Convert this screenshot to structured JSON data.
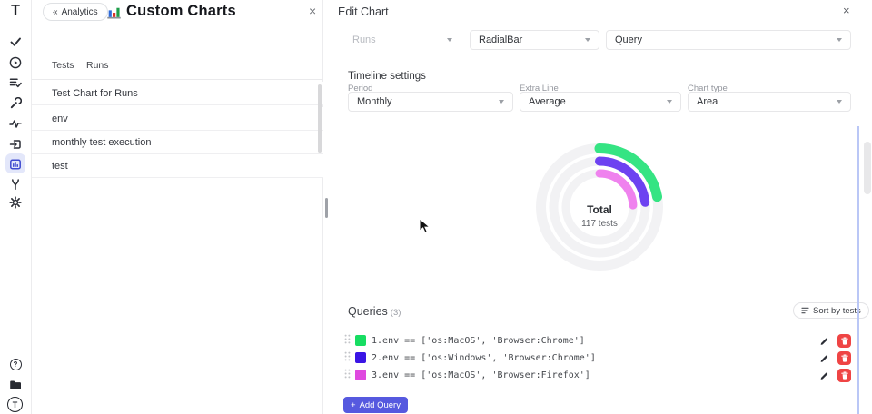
{
  "colors": {
    "accent_indigo": "#5659df",
    "delete_red": "#ef4444",
    "active_nav_bg": "#e3e7fa",
    "scroll_line_blue": "#bac7f6"
  },
  "sidebar": {
    "logo": "T",
    "icons": [
      "check",
      "play-circle",
      "checklist",
      "wrench",
      "activity",
      "import",
      "analytics-chart",
      "branch",
      "settings-gear"
    ],
    "active_icon": "analytics-chart",
    "help": "?",
    "avatar": "T"
  },
  "left_panel": {
    "back": {
      "chevrons": "«",
      "label": "Analytics"
    },
    "title": "Custom Charts",
    "close_label": "×",
    "tabs": [
      {
        "label": "Tests"
      },
      {
        "label": "Runs"
      }
    ],
    "charts": [
      {
        "name": "Test Chart for Runs"
      },
      {
        "name": "env"
      },
      {
        "name": "monthly test execution"
      },
      {
        "name": "test"
      }
    ]
  },
  "edit_panel": {
    "title": "Edit Chart",
    "close_label": "×",
    "source_select": {
      "value": "Runs",
      "disabled": true
    },
    "type_select": {
      "value": "RadialBar"
    },
    "mode_select": {
      "value": "Query"
    },
    "timeline": {
      "heading": "Timeline settings",
      "fields": [
        {
          "label": "Period",
          "value": "Monthly"
        },
        {
          "label": "Extra Line",
          "value": "Average"
        },
        {
          "label": "Chart type",
          "value": "Area"
        }
      ]
    },
    "queries": {
      "heading": "Queries",
      "count": "(3)",
      "sort_label": "Sort by tests",
      "add_plus": "+",
      "add_label": "Add Query",
      "items": [
        {
          "index": "1.",
          "code": "env == ['os:MacOS', 'Browser:Chrome']",
          "swatch": "#17dd62"
        },
        {
          "index": "2.",
          "code": "env == ['os:Windows', 'Browser:Chrome']",
          "swatch": "#3a15e5"
        },
        {
          "index": "3.",
          "code": "env == ['os:MacOS', 'Browser:Firefox']",
          "swatch": "#df49df"
        }
      ]
    }
  },
  "chart_data": {
    "type": "radialbar",
    "title": "Total",
    "subtitle": "117 tests",
    "total_tests": 117,
    "start_angle_deg": 0,
    "track_color": "#f2f2f4",
    "series": [
      {
        "name": "env == ['os:MacOS', 'Browser:Chrome']",
        "color": "#35e483",
        "sweep_deg": 80
      },
      {
        "name": "env == ['os:Windows', 'Browser:Chrome']",
        "color": "#6d42f1",
        "sweep_deg": 84
      },
      {
        "name": "env == ['os:MacOS', 'Browser:Firefox']",
        "color": "#ef82ee",
        "sweep_deg": 87
      }
    ]
  }
}
